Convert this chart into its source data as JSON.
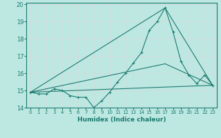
{
  "xlabel": "Humidex (Indice chaleur)",
  "xlim": [
    -0.5,
    23.5
  ],
  "ylim": [
    14,
    20.1
  ],
  "yticks": [
    14,
    15,
    16,
    17,
    18,
    19,
    20
  ],
  "xticks": [
    0,
    1,
    2,
    3,
    4,
    5,
    6,
    7,
    8,
    9,
    10,
    11,
    12,
    13,
    14,
    15,
    16,
    17,
    18,
    19,
    20,
    21,
    22,
    23
  ],
  "bg_color": "#bde8e2",
  "line_color": "#1a7a6e",
  "grid_color": "#d8d8d8",
  "line1_x": [
    0,
    1,
    2,
    3,
    4,
    5,
    6,
    7,
    8,
    9,
    10,
    11,
    12,
    13,
    14,
    15,
    16,
    17,
    18,
    19,
    20,
    21,
    22,
    23
  ],
  "line1_y": [
    14.9,
    14.8,
    14.8,
    15.1,
    15.0,
    14.7,
    14.6,
    14.6,
    14.0,
    14.4,
    14.9,
    15.5,
    16.0,
    16.6,
    17.2,
    18.5,
    19.0,
    19.8,
    18.4,
    16.7,
    15.9,
    15.4,
    15.9,
    15.3
  ],
  "line2_x": [
    0,
    23
  ],
  "line2_y": [
    14.9,
    15.3
  ],
  "line3_x": [
    0,
    17,
    23
  ],
  "line3_y": [
    14.9,
    16.55,
    15.3
  ],
  "line4_x": [
    0,
    17,
    23
  ],
  "line4_y": [
    14.9,
    19.8,
    15.3
  ]
}
